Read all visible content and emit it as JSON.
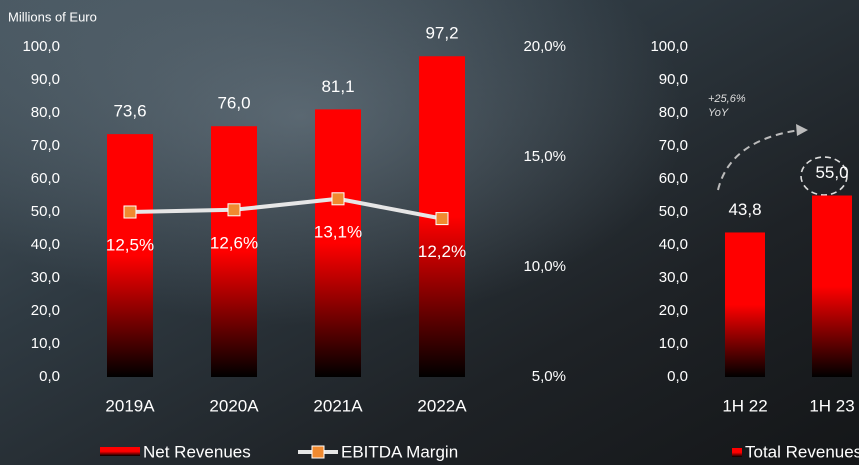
{
  "chart_data": [
    {
      "type": "bar",
      "ylabel": "Millions of Euro",
      "categories": [
        "2019A",
        "2020A",
        "2021A",
        "2022A"
      ],
      "series": [
        {
          "name": "Net Revenues",
          "type": "bar",
          "color": "#ff0000",
          "values": [
            73.6,
            76.0,
            81.1,
            97.2
          ],
          "value_labels": [
            "73,6",
            "76,0",
            "81,1",
            "97,2"
          ]
        },
        {
          "name": "EBITDA Margin",
          "type": "line",
          "axis": "y2",
          "color": "#e6e6e6",
          "marker_color": "#f08a30",
          "values": [
            12.5,
            12.6,
            13.1,
            12.2
          ],
          "value_labels": [
            "12,5%",
            "12,6%",
            "13,1%",
            "12,2%"
          ]
        }
      ],
      "ylim": [
        0,
        100
      ],
      "yticks": [
        {
          "value": 0,
          "label": "0,0"
        },
        {
          "value": 10,
          "label": "10,0"
        },
        {
          "value": 20,
          "label": "20,0"
        },
        {
          "value": 30,
          "label": "30,0"
        },
        {
          "value": 40,
          "label": "40,0"
        },
        {
          "value": 50,
          "label": "50,0"
        },
        {
          "value": 60,
          "label": "60,0"
        },
        {
          "value": 70,
          "label": "70,0"
        },
        {
          "value": 80,
          "label": "80,0"
        },
        {
          "value": 90,
          "label": "90,0"
        },
        {
          "value": 100,
          "label": "100,0"
        }
      ],
      "y2lim": [
        5,
        20
      ],
      "y2ticks": [
        {
          "value": 5,
          "label": "5,0%"
        },
        {
          "value": 10,
          "label": "10,0%"
        },
        {
          "value": 15,
          "label": "15,0%"
        },
        {
          "value": 20,
          "label": "20,0%"
        }
      ],
      "grid": false
    },
    {
      "type": "bar",
      "categories": [
        "1H 22",
        "1H 23"
      ],
      "series": [
        {
          "name": "Total Revenues",
          "type": "bar",
          "color": "#ff0000",
          "values": [
            43.8,
            55.0
          ],
          "value_labels": [
            "43,8",
            "55,0"
          ]
        }
      ],
      "annotations": [
        "+25,6%",
        "YoY"
      ],
      "ylim": [
        0,
        100
      ],
      "yticks": [
        {
          "value": 0,
          "label": "0,0"
        },
        {
          "value": 10,
          "label": "10,0"
        },
        {
          "value": 20,
          "label": "20,0"
        },
        {
          "value": 30,
          "label": "30,0"
        },
        {
          "value": 40,
          "label": "40,0"
        },
        {
          "value": 50,
          "label": "50,0"
        },
        {
          "value": 60,
          "label": "60,0"
        },
        {
          "value": 70,
          "label": "70,0"
        },
        {
          "value": 80,
          "label": "80,0"
        },
        {
          "value": 90,
          "label": "90,0"
        },
        {
          "value": 100,
          "label": "100,0"
        }
      ],
      "grid": false
    }
  ]
}
